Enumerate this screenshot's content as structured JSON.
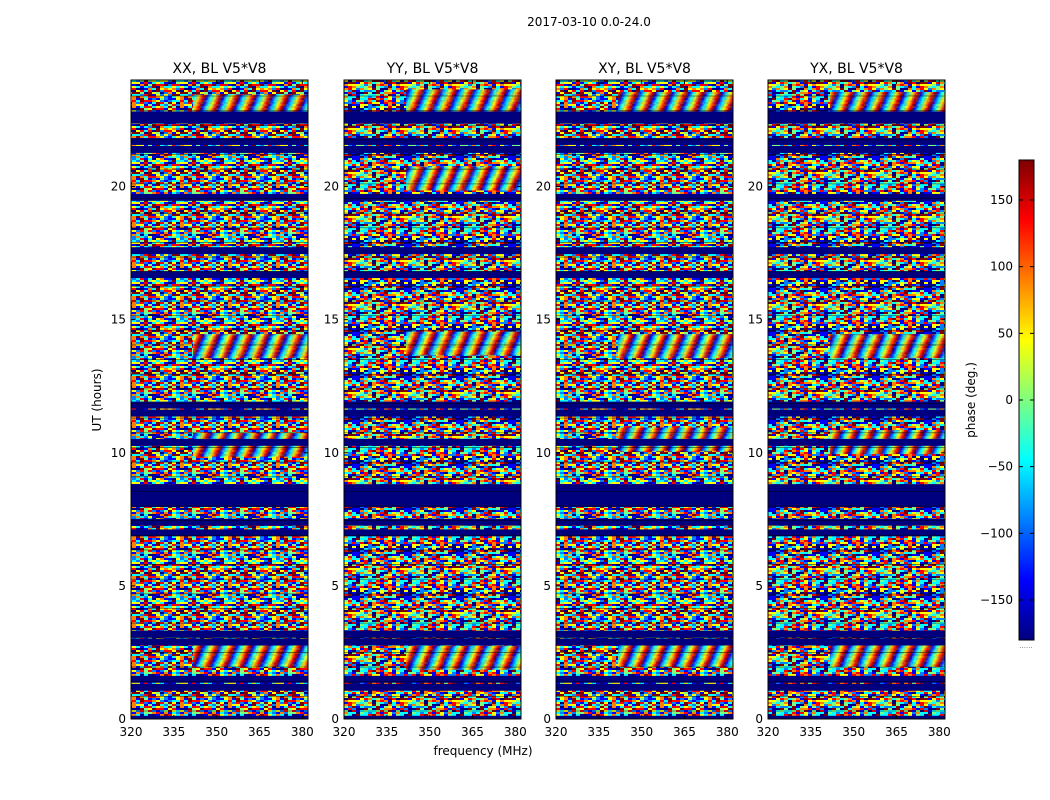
{
  "chart_data": {
    "type": "heatmap",
    "suptitle": "2017-03-10 0.0-24.0",
    "xlabel": "frequency (MHz)",
    "ylabel": "UT (hours)",
    "xlim": [
      320,
      382
    ],
    "ylim": [
      0,
      24
    ],
    "x_ticks": [
      320,
      335,
      350,
      365,
      380
    ],
    "y_ticks": [
      0,
      5,
      10,
      15,
      20
    ],
    "panels": [
      {
        "title": "XX, BL V5*V8",
        "band_hours": [
          14.0,
          2.4,
          10.3,
          23.0
        ],
        "fringe_shift": 0.0
      },
      {
        "title": "YY, BL V5*V8",
        "band_hours": [
          14.1,
          2.3,
          20.3,
          23.2
        ],
        "fringe_shift": 0.7
      },
      {
        "title": "XY, BL V5*V8",
        "band_hours": [
          14.0,
          2.4,
          10.5,
          23.1
        ],
        "fringe_shift": 1.4
      },
      {
        "title": "YX, BL V5*V8",
        "band_hours": [
          14.0,
          2.4,
          10.4,
          23.1
        ],
        "fringe_shift": 2.1
      }
    ],
    "flagged_hours": [
      0.0,
      1.2,
      1.5,
      2.9,
      3.2,
      7.0,
      7.4,
      8.1,
      8.3,
      8.5,
      8.7,
      10.4,
      11.5,
      11.8,
      16.7,
      17.6,
      19.6,
      21.4,
      21.7,
      22.5,
      22.7
    ],
    "colorbar": {
      "label": "phase (deg.)",
      "range": [
        -180,
        180
      ],
      "ticks": [
        150,
        100,
        50,
        0,
        -50,
        -100,
        -150
      ],
      "tick_labels": [
        "150",
        "100",
        "50",
        "0",
        "−50",
        "−100",
        "−150"
      ],
      "colormap": [
        "#00007f",
        "#0000ff",
        "#007fff",
        "#00ffff",
        "#7fff7f",
        "#ffff00",
        "#ff7f00",
        "#ff0000",
        "#7f0000"
      ]
    },
    "colorbar_footer": "......"
  }
}
